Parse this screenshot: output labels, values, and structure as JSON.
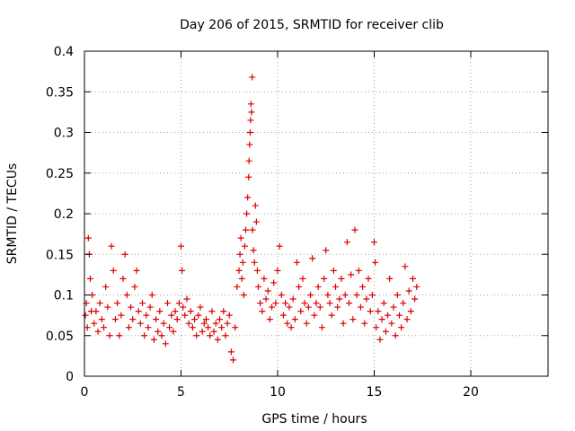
{
  "chart_data": {
    "type": "scatter",
    "title": "Day 206 of 2015, SRMTID for receiver clib",
    "xlabel": "GPS time / hours",
    "ylabel": "SRMTID / TECUs",
    "xlim": [
      0,
      24
    ],
    "ylim": [
      0,
      0.4
    ],
    "xticks": [
      0,
      5,
      10,
      15,
      20
    ],
    "xtick_labels": [
      "0",
      "5",
      "10",
      "15",
      "20"
    ],
    "yticks": [
      0,
      0.05,
      0.1,
      0.15,
      0.2,
      0.25,
      0.3,
      0.35,
      0.4
    ],
    "ytick_labels": [
      "0",
      "0.05",
      "0.1",
      "0.15",
      "0.2",
      "0.25",
      "0.3",
      "0.35",
      "0.4"
    ],
    "grid": true,
    "marker": "plus",
    "marker_color": "#dd0000",
    "series": [
      {
        "name": "SRMTID",
        "points": [
          [
            0.05,
            0.075
          ],
          [
            0.1,
            0.09
          ],
          [
            0.15,
            0.06
          ],
          [
            0.2,
            0.17
          ],
          [
            0.25,
            0.15
          ],
          [
            0.3,
            0.12
          ],
          [
            0.35,
            0.08
          ],
          [
            0.4,
            0.1
          ],
          [
            0.5,
            0.065
          ],
          [
            0.6,
            0.08
          ],
          [
            0.7,
            0.055
          ],
          [
            0.8,
            0.09
          ],
          [
            0.9,
            0.07
          ],
          [
            1.0,
            0.06
          ],
          [
            1.1,
            0.11
          ],
          [
            1.2,
            0.085
          ],
          [
            1.3,
            0.05
          ],
          [
            1.4,
            0.16
          ],
          [
            1.5,
            0.13
          ],
          [
            1.6,
            0.07
          ],
          [
            1.7,
            0.09
          ],
          [
            1.8,
            0.05
          ],
          [
            1.9,
            0.075
          ],
          [
            2.0,
            0.12
          ],
          [
            2.1,
            0.15
          ],
          [
            2.2,
            0.1
          ],
          [
            2.3,
            0.06
          ],
          [
            2.4,
            0.085
          ],
          [
            2.5,
            0.07
          ],
          [
            2.6,
            0.11
          ],
          [
            2.7,
            0.13
          ],
          [
            2.8,
            0.08
          ],
          [
            2.9,
            0.065
          ],
          [
            3.0,
            0.09
          ],
          [
            3.1,
            0.05
          ],
          [
            3.2,
            0.075
          ],
          [
            3.3,
            0.06
          ],
          [
            3.4,
            0.085
          ],
          [
            3.5,
            0.1
          ],
          [
            3.6,
            0.045
          ],
          [
            3.7,
            0.07
          ],
          [
            3.8,
            0.055
          ],
          [
            3.9,
            0.08
          ],
          [
            4.0,
            0.05
          ],
          [
            4.1,
            0.065
          ],
          [
            4.2,
            0.04
          ],
          [
            4.3,
            0.09
          ],
          [
            4.4,
            0.06
          ],
          [
            4.5,
            0.075
          ],
          [
            4.6,
            0.055
          ],
          [
            4.7,
            0.08
          ],
          [
            4.8,
            0.07
          ],
          [
            4.9,
            0.09
          ],
          [
            5.0,
            0.16
          ],
          [
            5.05,
            0.13
          ],
          [
            5.1,
            0.085
          ],
          [
            5.2,
            0.075
          ],
          [
            5.3,
            0.095
          ],
          [
            5.4,
            0.065
          ],
          [
            5.5,
            0.08
          ],
          [
            5.6,
            0.06
          ],
          [
            5.7,
            0.07
          ],
          [
            5.8,
            0.05
          ],
          [
            5.9,
            0.075
          ],
          [
            6.0,
            0.085
          ],
          [
            6.1,
            0.055
          ],
          [
            6.2,
            0.065
          ],
          [
            6.3,
            0.07
          ],
          [
            6.4,
            0.06
          ],
          [
            6.5,
            0.05
          ],
          [
            6.6,
            0.08
          ],
          [
            6.7,
            0.055
          ],
          [
            6.8,
            0.065
          ],
          [
            6.9,
            0.045
          ],
          [
            7.0,
            0.07
          ],
          [
            7.1,
            0.06
          ],
          [
            7.2,
            0.08
          ],
          [
            7.3,
            0.05
          ],
          [
            7.4,
            0.065
          ],
          [
            7.5,
            0.075
          ],
          [
            7.6,
            0.03
          ],
          [
            7.7,
            0.02
          ],
          [
            7.8,
            0.06
          ],
          [
            7.9,
            0.11
          ],
          [
            8.0,
            0.13
          ],
          [
            8.05,
            0.15
          ],
          [
            8.1,
            0.17
          ],
          [
            8.15,
            0.12
          ],
          [
            8.2,
            0.14
          ],
          [
            8.25,
            0.1
          ],
          [
            8.3,
            0.16
          ],
          [
            8.35,
            0.18
          ],
          [
            8.4,
            0.2
          ],
          [
            8.45,
            0.22
          ],
          [
            8.5,
            0.245
          ],
          [
            8.52,
            0.265
          ],
          [
            8.55,
            0.285
          ],
          [
            8.58,
            0.3
          ],
          [
            8.6,
            0.315
          ],
          [
            8.62,
            0.335
          ],
          [
            8.65,
            0.325
          ],
          [
            8.68,
            0.368
          ],
          [
            8.7,
            0.18
          ],
          [
            8.75,
            0.155
          ],
          [
            8.8,
            0.14
          ],
          [
            8.85,
            0.21
          ],
          [
            8.9,
            0.19
          ],
          [
            8.95,
            0.13
          ],
          [
            9.0,
            0.11
          ],
          [
            9.1,
            0.09
          ],
          [
            9.2,
            0.08
          ],
          [
            9.3,
            0.12
          ],
          [
            9.4,
            0.095
          ],
          [
            9.5,
            0.105
          ],
          [
            9.6,
            0.07
          ],
          [
            9.7,
            0.085
          ],
          [
            9.8,
            0.115
          ],
          [
            9.9,
            0.09
          ],
          [
            10.0,
            0.13
          ],
          [
            10.1,
            0.16
          ],
          [
            10.2,
            0.1
          ],
          [
            10.3,
            0.075
          ],
          [
            10.4,
            0.09
          ],
          [
            10.5,
            0.065
          ],
          [
            10.6,
            0.085
          ],
          [
            10.7,
            0.06
          ],
          [
            10.8,
            0.095
          ],
          [
            10.9,
            0.07
          ],
          [
            11.0,
            0.14
          ],
          [
            11.1,
            0.11
          ],
          [
            11.2,
            0.08
          ],
          [
            11.3,
            0.12
          ],
          [
            11.4,
            0.09
          ],
          [
            11.5,
            0.065
          ],
          [
            11.6,
            0.085
          ],
          [
            11.7,
            0.1
          ],
          [
            11.8,
            0.145
          ],
          [
            11.9,
            0.075
          ],
          [
            12.0,
            0.09
          ],
          [
            12.1,
            0.11
          ],
          [
            12.2,
            0.085
          ],
          [
            12.3,
            0.06
          ],
          [
            12.4,
            0.12
          ],
          [
            12.5,
            0.155
          ],
          [
            12.6,
            0.1
          ],
          [
            12.7,
            0.09
          ],
          [
            12.8,
            0.075
          ],
          [
            12.9,
            0.13
          ],
          [
            13.0,
            0.11
          ],
          [
            13.1,
            0.085
          ],
          [
            13.2,
            0.095
          ],
          [
            13.3,
            0.12
          ],
          [
            13.4,
            0.065
          ],
          [
            13.5,
            0.1
          ],
          [
            13.6,
            0.165
          ],
          [
            13.7,
            0.09
          ],
          [
            13.8,
            0.125
          ],
          [
            13.9,
            0.07
          ],
          [
            14.0,
            0.18
          ],
          [
            14.1,
            0.1
          ],
          [
            14.2,
            0.13
          ],
          [
            14.3,
            0.085
          ],
          [
            14.4,
            0.11
          ],
          [
            14.5,
            0.065
          ],
          [
            14.6,
            0.095
          ],
          [
            14.7,
            0.12
          ],
          [
            14.8,
            0.08
          ],
          [
            14.9,
            0.1
          ],
          [
            15.0,
            0.165
          ],
          [
            15.05,
            0.14
          ],
          [
            15.1,
            0.06
          ],
          [
            15.2,
            0.08
          ],
          [
            15.3,
            0.045
          ],
          [
            15.4,
            0.07
          ],
          [
            15.5,
            0.09
          ],
          [
            15.6,
            0.055
          ],
          [
            15.7,
            0.075
          ],
          [
            15.8,
            0.12
          ],
          [
            15.9,
            0.065
          ],
          [
            16.0,
            0.085
          ],
          [
            16.1,
            0.05
          ],
          [
            16.2,
            0.1
          ],
          [
            16.3,
            0.075
          ],
          [
            16.4,
            0.06
          ],
          [
            16.5,
            0.09
          ],
          [
            16.6,
            0.135
          ],
          [
            16.7,
            0.07
          ],
          [
            16.8,
            0.105
          ],
          [
            16.9,
            0.08
          ],
          [
            17.0,
            0.12
          ],
          [
            17.1,
            0.095
          ],
          [
            17.2,
            0.11
          ]
        ]
      }
    ]
  }
}
